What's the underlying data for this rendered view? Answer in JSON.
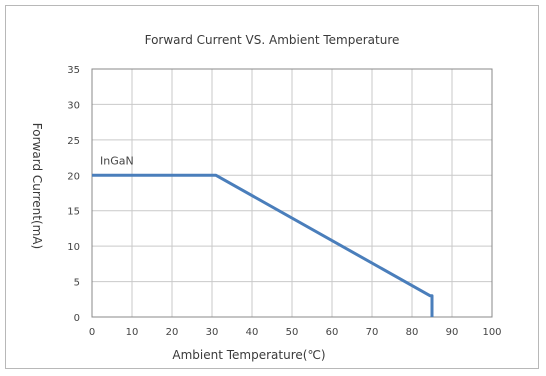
{
  "chart_data": {
    "type": "line",
    "title": "Forward Current VS. Ambient Temperature",
    "xlabel": "Ambient Temperature(℃)",
    "ylabel": "Forward  Current(mA)",
    "xlim": [
      0,
      100
    ],
    "ylim": [
      0,
      35
    ],
    "xticks": [
      0,
      10,
      20,
      30,
      40,
      50,
      60,
      70,
      80,
      90,
      100
    ],
    "yticks": [
      0,
      5,
      10,
      15,
      20,
      25,
      30,
      35
    ],
    "grid": true,
    "series": [
      {
        "name": "InGaN",
        "color": "#4a7ebb",
        "x": [
          0,
          31,
          84.5,
          85,
          85
        ],
        "y": [
          20,
          20,
          3,
          3,
          0
        ]
      }
    ],
    "annotations": [
      {
        "text": "InGaN",
        "x": 2,
        "y": 21.5
      }
    ]
  },
  "colors": {
    "grid": "#c9c9c9",
    "axis": "#888888",
    "line": "#4a7ebb",
    "frame": "#b8b8b8"
  }
}
